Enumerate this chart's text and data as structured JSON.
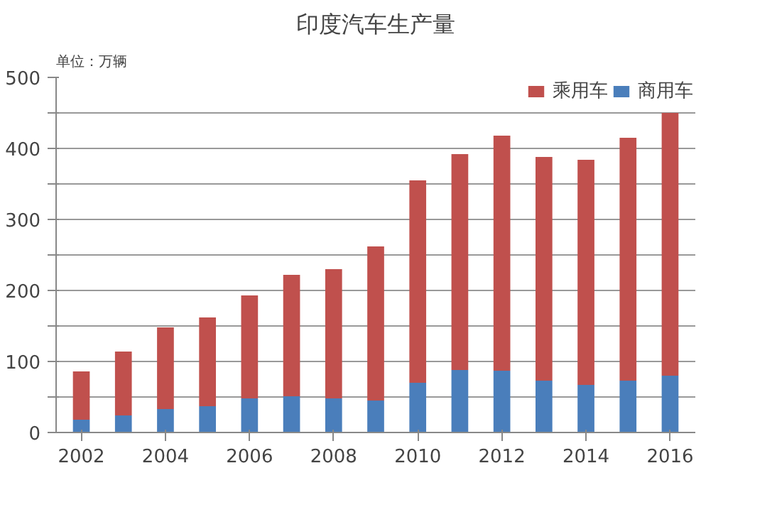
{
  "chart_data": {
    "type": "bar",
    "title": "印度汽车生产量",
    "ylabel": "单位：万辆",
    "stacked": true,
    "x": [
      2002,
      2003,
      2004,
      2005,
      2006,
      2007,
      2008,
      2009,
      2010,
      2011,
      2012,
      2013,
      2014,
      2015,
      2016
    ],
    "series": [
      {
        "name": "商用车",
        "color": "#4a7ebb",
        "values": [
          18,
          24,
          33,
          37,
          48,
          51,
          48,
          45,
          70,
          88,
          87,
          73,
          67,
          73,
          80
        ]
      },
      {
        "name": "乘用车",
        "color": "#c0504d",
        "values": [
          68,
          90,
          115,
          125,
          145,
          171,
          182,
          217,
          285,
          304,
          331,
          315,
          317,
          342,
          370
        ]
      }
    ],
    "xlim": [
      2001.4,
      2016.6
    ],
    "xticks": [
      2002,
      2004,
      2006,
      2008,
      2010,
      2012,
      2014,
      2016
    ],
    "ylim": [
      0,
      500
    ],
    "yticks": [
      0,
      {
        "value": 50,
        "label": null
      },
      100,
      {
        "value": 150,
        "label": null
      },
      200,
      {
        "value": 250,
        "label": null
      },
      300,
      {
        "value": 350,
        "label": null
      },
      400,
      {
        "value": 450,
        "label": null
      },
      500
    ],
    "grid": "y",
    "legend": "top right"
  }
}
